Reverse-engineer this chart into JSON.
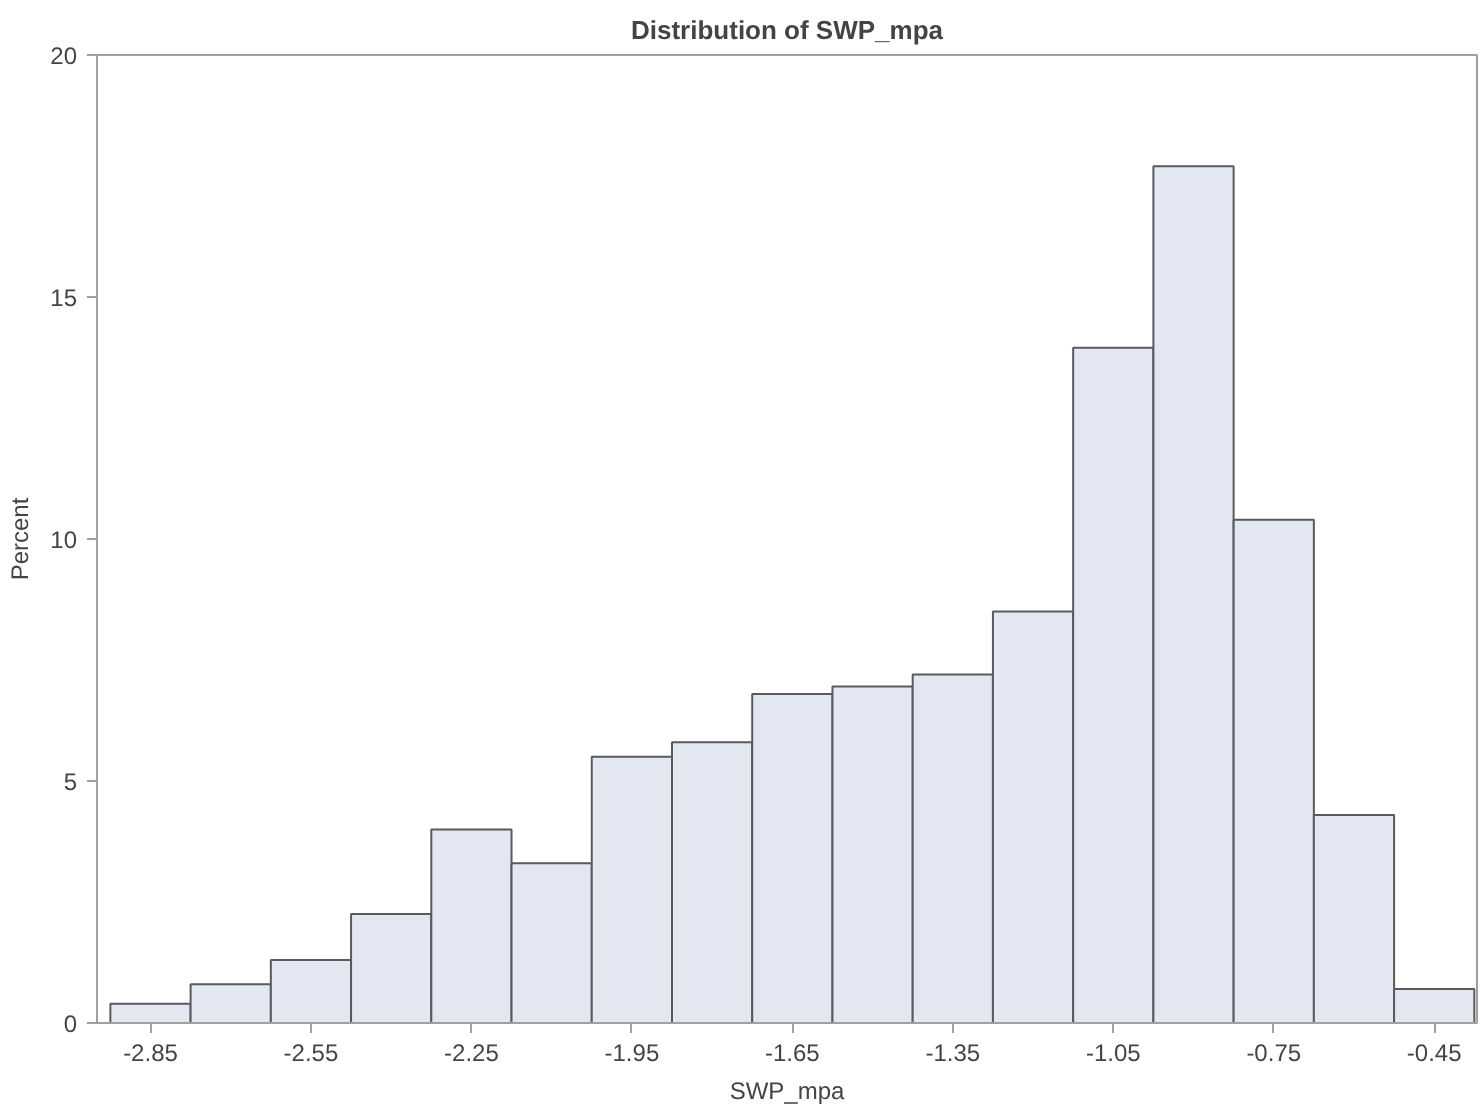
{
  "chart_data": {
    "type": "histogram",
    "title": "Distribution of SWP_mpa",
    "xlabel": "SWP_mpa",
    "ylabel": "Percent",
    "bins": [
      -2.925,
      -2.775,
      -2.625,
      -2.475,
      -2.325,
      -2.175,
      -2.025,
      -1.875,
      -1.725,
      -1.575,
      -1.425,
      -1.275,
      -1.125,
      -0.975,
      -0.825,
      -0.675,
      -0.525,
      -0.375
    ],
    "values": [
      0.4,
      0.8,
      1.3,
      2.25,
      4.0,
      3.3,
      5.5,
      5.8,
      6.8,
      6.95,
      7.2,
      8.5,
      13.95,
      17.7,
      10.4,
      4.3,
      0.7
    ],
    "color": "#e3e7f1",
    "xlim": [
      -2.95,
      -0.37
    ],
    "xticks": [
      -2.85,
      -2.55,
      -2.25,
      -1.95,
      -1.65,
      -1.35,
      -1.05,
      -0.75,
      -0.45
    ],
    "ylim": [
      0,
      20
    ],
    "yticks": [
      0,
      5,
      10,
      15,
      20
    ],
    "grid": false
  }
}
